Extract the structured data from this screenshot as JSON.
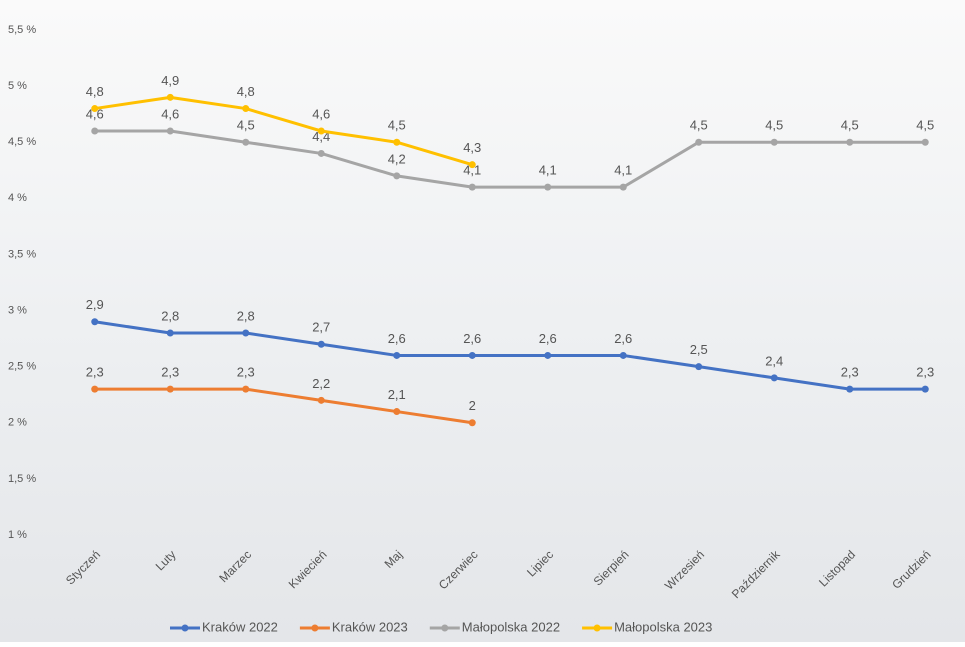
{
  "chart_data": {
    "type": "line",
    "categories": [
      "Styczeń",
      "Luty",
      "Marzec",
      "Kwiecień",
      "Maj",
      "Czerwiec",
      "Lipiec",
      "Sierpień",
      "Wrzesień",
      "Październik",
      "Listopad",
      "Grudzień"
    ],
    "series": [
      {
        "name": "Kraków 2022",
        "color": "#4472c4",
        "values": [
          2.9,
          2.8,
          2.8,
          2.7,
          2.6,
          2.6,
          2.6,
          2.6,
          2.5,
          2.4,
          2.3,
          2.3
        ],
        "value_labels": [
          "2,9",
          "2,8",
          "2,8",
          "2,7",
          "2,6",
          "2,6",
          "2,6",
          "2,6",
          "2,5",
          "2,4",
          "2,3",
          "2,3"
        ]
      },
      {
        "name": "Kraków 2023",
        "color": "#ed7d31",
        "values": [
          2.3,
          2.3,
          2.3,
          2.2,
          2.1,
          2,
          null,
          null,
          null,
          null,
          null,
          null
        ],
        "value_labels": [
          "2,3",
          "2,3",
          "2,3",
          "2,2",
          "2,1",
          "2",
          null,
          null,
          null,
          null,
          null,
          null
        ]
      },
      {
        "name": "Małopolska 2022",
        "color": "#a5a5a5",
        "values": [
          4.6,
          4.6,
          4.5,
          4.4,
          4.2,
          4.1,
          4.1,
          4.1,
          4.5,
          4.5,
          4.5,
          4.5
        ],
        "value_labels": [
          "4,6",
          "4,6",
          "4,5",
          "4,4",
          "4,2",
          "4,1",
          "4,1",
          "4,1",
          "4,5",
          "4,5",
          "4,5",
          "4,5"
        ]
      },
      {
        "name": "Małopolska 2023",
        "color": "#ffc000",
        "values": [
          4.8,
          4.9,
          4.8,
          4.6,
          4.5,
          4.3,
          null,
          null,
          null,
          null,
          null,
          null
        ],
        "value_labels": [
          "4,8",
          "4,9",
          "4,8",
          "4,6",
          "4,5",
          "4,3",
          null,
          null,
          null,
          null,
          null,
          null
        ]
      }
    ],
    "ylim": [
      1,
      5.5
    ],
    "yticks": [
      {
        "value": 1,
        "label": "1 %"
      },
      {
        "value": 1.5,
        "label": "1,5 %"
      },
      {
        "value": 2,
        "label": "2 %"
      },
      {
        "value": 2.5,
        "label": "2,5 %"
      },
      {
        "value": 3,
        "label": "3 %"
      },
      {
        "value": 3.5,
        "label": "3,5 %"
      },
      {
        "value": 4,
        "label": "4 %"
      },
      {
        "value": 4.5,
        "label": "4,5 %"
      },
      {
        "value": 5,
        "label": "5 %"
      },
      {
        "value": 5.5,
        "label": "5,5 %"
      }
    ],
    "grid": false,
    "legend": "bottom"
  }
}
